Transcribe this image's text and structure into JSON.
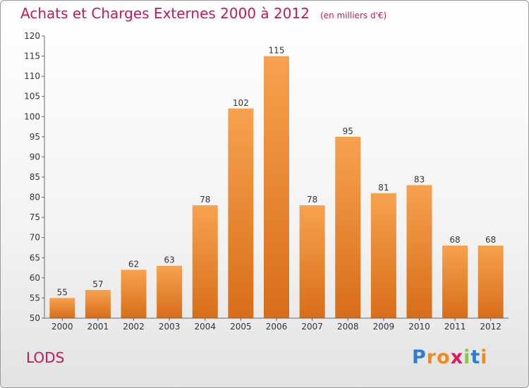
{
  "chart_data": {
    "type": "bar",
    "title": "Achats et Charges Externes 2000 à 2012",
    "subtitle": "(en milliers d'€)",
    "categories": [
      "2000",
      "2001",
      "2002",
      "2003",
      "2004",
      "2005",
      "2006",
      "2007",
      "2008",
      "2009",
      "2010",
      "2011",
      "2012"
    ],
    "values": [
      55,
      57,
      62,
      63,
      78,
      102,
      115,
      78,
      95,
      81,
      83,
      68,
      68
    ],
    "ylim": [
      50,
      120
    ],
    "yticks": [
      50,
      55,
      60,
      65,
      70,
      75,
      80,
      85,
      90,
      95,
      100,
      105,
      110,
      115,
      120
    ],
    "grid": false,
    "bar_color_top": "#f7a24f",
    "bar_color_bottom": "#d86d18"
  },
  "footer": {
    "commune": "LODS",
    "logo": {
      "letters": [
        "P",
        "r",
        "o",
        "x",
        "i",
        "t",
        "i"
      ],
      "colors": [
        "#2a7fd4",
        "#f08a1a",
        "#f08a1a",
        "#d81b60",
        "#8cc63f",
        "#2a7fd4",
        "#f08a1a"
      ]
    }
  }
}
